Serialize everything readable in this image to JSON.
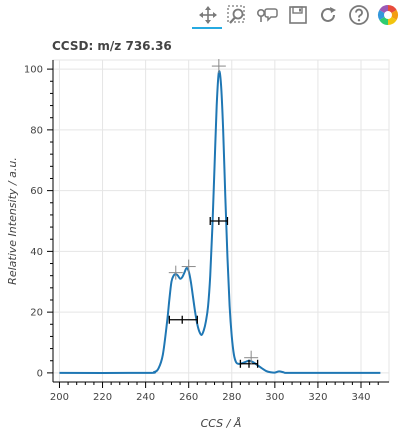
{
  "toolbar": {
    "tools": [
      {
        "name": "pan-tool",
        "icon": "move-arrows-icon",
        "active": true
      },
      {
        "name": "box-zoom-tool",
        "icon": "box-zoom-icon",
        "active": false
      },
      {
        "name": "hover-tool",
        "icon": "hover-speech-icon",
        "active": false
      },
      {
        "name": "save-tool",
        "icon": "floppy-disk-icon",
        "active": false
      },
      {
        "name": "reset-tool",
        "icon": "reset-arrow-icon",
        "active": false
      },
      {
        "name": "help-tool",
        "icon": "question-mark-icon",
        "active": false
      },
      {
        "name": "bokeh-logo",
        "icon": "bokeh-logo-icon",
        "active": false
      }
    ]
  },
  "chart_data": {
    "type": "line",
    "title": "CCSD: m/z 736.36",
    "xlabel": "CCS / Å",
    "ylabel": "Relative Intensity / a.u.",
    "xlim": [
      197,
      353
    ],
    "ylim": [
      -3,
      103
    ],
    "xticks": [
      200,
      220,
      240,
      260,
      280,
      300,
      320,
      340
    ],
    "yticks": [
      0,
      20,
      40,
      60,
      80,
      100
    ],
    "grid": true,
    "line_color": "#1f77b4",
    "marker_color": "#000000",
    "peak_marker_color": "#888888",
    "series": [
      {
        "x": [
          200,
          240,
          244,
          246,
          248,
          250,
          251,
          252,
          253,
          254,
          255,
          256,
          257,
          258,
          259,
          260,
          261,
          262,
          263,
          264,
          265,
          266,
          267,
          268,
          269,
          270,
          271,
          272,
          273,
          274,
          275,
          276,
          277,
          278,
          279,
          280,
          281,
          282,
          283,
          284,
          286,
          288,
          290,
          292,
          294,
          296,
          298,
          300,
          302,
          304,
          306,
          320,
          349
        ],
        "y": [
          0,
          0,
          0.3,
          1.5,
          6,
          17,
          24,
          30,
          32,
          32.5,
          32,
          31,
          31.5,
          33,
          34.5,
          33.5,
          30,
          25,
          20,
          16,
          13.5,
          12.5,
          14,
          17,
          22,
          32,
          48,
          68,
          88,
          99,
          95,
          80,
          58,
          38,
          22,
          12,
          6,
          3.5,
          3,
          3,
          3.5,
          4,
          3.5,
          2.5,
          1.5,
          0.6,
          0.2,
          0.1,
          0.5,
          0.2,
          0,
          0,
          0
        ]
      }
    ],
    "peak_markers": [
      {
        "x": 254,
        "y": 33
      },
      {
        "x": 260,
        "y": 35
      },
      {
        "x": 274,
        "y": 101
      },
      {
        "x": 289,
        "y": 5
      }
    ],
    "fwhm_bars": [
      {
        "x": 257,
        "y": 17.5,
        "xmin": 251,
        "xmax": 264
      },
      {
        "x": 274,
        "y": 50,
        "xmin": 270,
        "xmax": 278
      },
      {
        "x": 288,
        "y": 3,
        "xmin": 284,
        "xmax": 292
      }
    ]
  }
}
